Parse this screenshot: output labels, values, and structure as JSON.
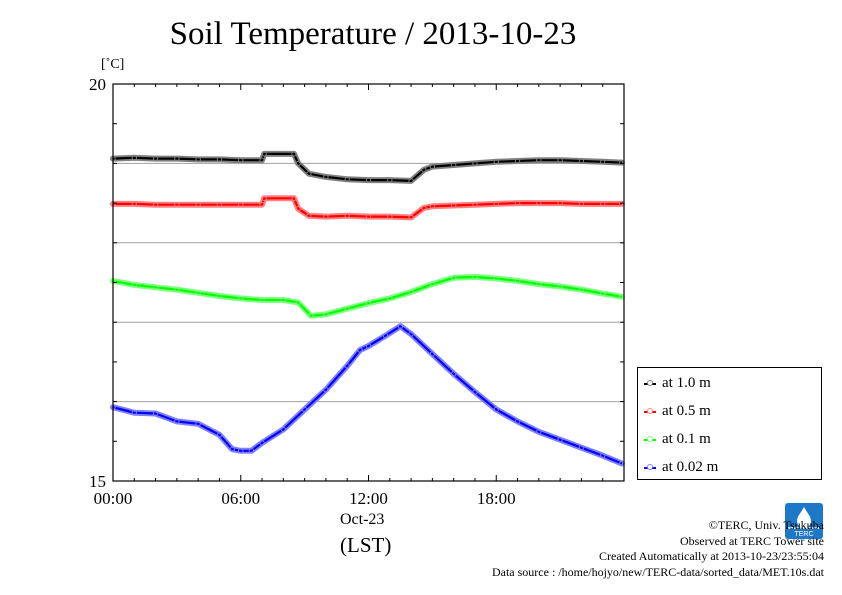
{
  "title": "Soil Temperature / 2013-10-23",
  "unit_label": "[˚C]",
  "date_label": "Oct-23",
  "timezone_label": "(LST)",
  "legend": [
    {
      "label": "at 1.0 m",
      "color": "#000000",
      "marker": "#808080"
    },
    {
      "label": "at 0.5 m",
      "color": "#ff0000",
      "marker": "#ff8080"
    },
    {
      "label": "at 0.1 m",
      "color": "#00ff00",
      "marker": "#80ff80"
    },
    {
      "label": "at 0.02 m",
      "color": "#0000ff",
      "marker": "#8080ff"
    }
  ],
  "footer": {
    "copyright": "©TERC, Univ. Tsukuba",
    "site": "Observed at TERC Tower site",
    "created": "Created Automatically at 2013-10-23/23:55:04",
    "source": "Data source : /home/hojyo/new/TERC-data/sorted_data/MET.10s.dat"
  },
  "logo_text": "TERC",
  "chart_data": {
    "type": "line",
    "title": "Soil Temperature / 2013-10-23",
    "ylabel": "[˚C]",
    "xlabel": "(LST)",
    "ylim": [
      15,
      20
    ],
    "xlim": [
      0,
      24
    ],
    "y_ticks": [
      15,
      20
    ],
    "y_tick_labels": [
      "15",
      "20"
    ],
    "y_gridlines": [
      16,
      17,
      18,
      19
    ],
    "x_ticks": [
      0,
      6,
      12,
      18
    ],
    "x_tick_labels": [
      "00:00",
      "06:00",
      "12:00",
      "18:00"
    ],
    "grid": true,
    "legend_position": "right",
    "series": [
      {
        "name": "at 1.0 m",
        "x": [
          0,
          1,
          2,
          3,
          4,
          5,
          6,
          7,
          7.1,
          8.5,
          8.7,
          9.2,
          10,
          11,
          12,
          13,
          14,
          14.6,
          15,
          16,
          17,
          18,
          19,
          20,
          21,
          22,
          23,
          23.9
        ],
        "y": [
          19.06,
          19.07,
          19.06,
          19.06,
          19.05,
          19.05,
          19.04,
          19.04,
          19.12,
          19.12,
          19.0,
          18.87,
          18.83,
          18.8,
          18.79,
          18.79,
          18.78,
          18.92,
          18.96,
          18.98,
          19.0,
          19.02,
          19.03,
          19.04,
          19.04,
          19.03,
          19.02,
          19.01
        ]
      },
      {
        "name": "at 0.5 m",
        "x": [
          0,
          1,
          2,
          3,
          4,
          5,
          6,
          7,
          7.1,
          8.5,
          8.7,
          9.2,
          10,
          11,
          12,
          13,
          14,
          14.6,
          15,
          16,
          17,
          18,
          19,
          20,
          21,
          22,
          23,
          23.9
        ],
        "y": [
          18.49,
          18.49,
          18.48,
          18.48,
          18.48,
          18.48,
          18.48,
          18.48,
          18.56,
          18.56,
          18.43,
          18.34,
          18.33,
          18.34,
          18.33,
          18.33,
          18.32,
          18.44,
          18.46,
          18.47,
          18.48,
          18.49,
          18.5,
          18.5,
          18.5,
          18.49,
          18.49,
          18.49
        ]
      },
      {
        "name": "at 0.1 m",
        "x": [
          0,
          1,
          2,
          3,
          4,
          5,
          6,
          7,
          8,
          8.7,
          9.3,
          10,
          11,
          12,
          13,
          14,
          15,
          16,
          17,
          18,
          19,
          20,
          21,
          22,
          23,
          23.9
        ],
        "y": [
          17.52,
          17.47,
          17.44,
          17.41,
          17.37,
          17.33,
          17.3,
          17.28,
          17.28,
          17.25,
          17.08,
          17.1,
          17.17,
          17.24,
          17.3,
          17.38,
          17.48,
          17.56,
          17.57,
          17.55,
          17.52,
          17.48,
          17.45,
          17.41,
          17.36,
          17.32
        ]
      },
      {
        "name": "at 0.02 m",
        "x": [
          0,
          1,
          2,
          3,
          4,
          5,
          5.6,
          6,
          6.5,
          7,
          8,
          9,
          10,
          11,
          11.6,
          12,
          12.8,
          13.5,
          14,
          15,
          16,
          17,
          18,
          19,
          20,
          21,
          22,
          23,
          23.9
        ],
        "y": [
          15.93,
          15.86,
          15.85,
          15.75,
          15.72,
          15.58,
          15.4,
          15.38,
          15.38,
          15.48,
          15.65,
          15.9,
          16.15,
          16.45,
          16.65,
          16.7,
          16.83,
          16.95,
          16.85,
          16.6,
          16.35,
          16.12,
          15.9,
          15.75,
          15.62,
          15.52,
          15.42,
          15.32,
          15.22
        ]
      }
    ]
  }
}
